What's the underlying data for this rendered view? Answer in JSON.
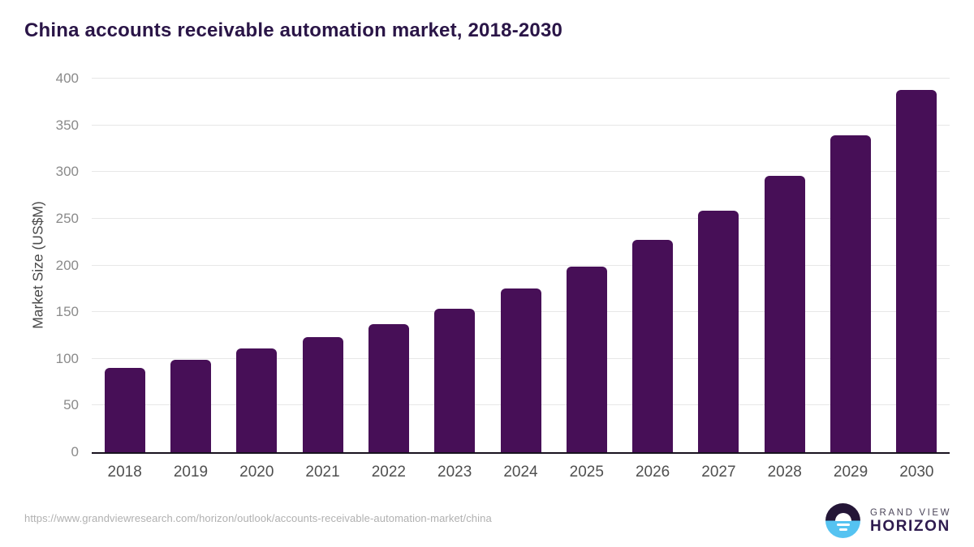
{
  "title": "China accounts receivable automation market, 2018-2030",
  "chart_data": {
    "type": "bar",
    "title": "China accounts receivable automation market, 2018-2030",
    "categories": [
      "2018",
      "2019",
      "2020",
      "2021",
      "2022",
      "2023",
      "2024",
      "2025",
      "2026",
      "2027",
      "2028",
      "2029",
      "2030"
    ],
    "values": [
      90,
      99,
      111,
      123,
      137,
      154,
      175,
      199,
      227,
      259,
      296,
      339,
      388
    ],
    "xlabel": "",
    "ylabel": "Market Size (US$M)",
    "ylim": [
      0,
      400
    ],
    "ytick_step": 50,
    "grid": true,
    "legend": "none",
    "bar_color": "#470f57"
  },
  "colors": {
    "title": "#2a1547",
    "bar": "#470f57",
    "axis_line": "#18121f",
    "gridline": "#e7e7e7",
    "y_tick": "#8a8a8a",
    "x_tick": "#4f4f4f",
    "url_text": "#b0b0b0",
    "logo_dark": "#241637",
    "logo_blue": "#55c3f1"
  },
  "footer": {
    "source_url": "https://www.grandviewresearch.com/horizon/outlook/accounts-receivable-automation-market/china",
    "logo_top": "GRAND VIEW",
    "logo_bottom": "HORIZON"
  }
}
